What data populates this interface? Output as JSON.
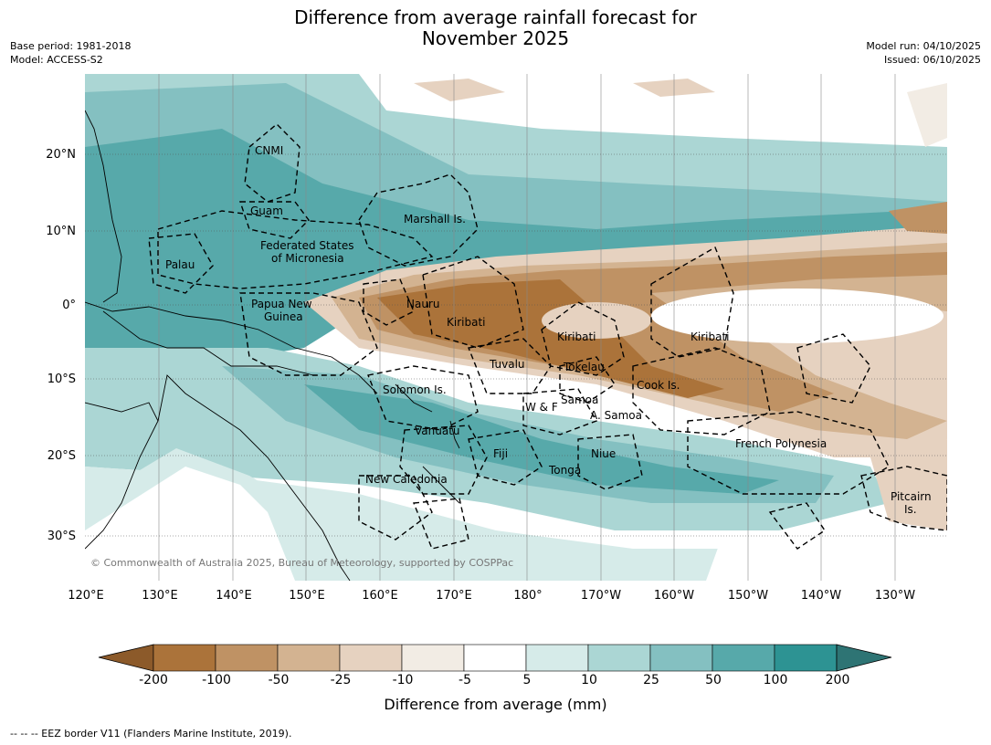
{
  "title_line1": "Difference from average rainfall forecast for",
  "title_line2": "November 2025",
  "meta": {
    "base_period": "Base period: 1981-2018",
    "model": "Model: ACCESS-S2",
    "model_run": "Model run: 04/10/2025",
    "issued": "Issued: 06/10/2025"
  },
  "lat_ticks": [
    "20°N",
    "10°N",
    "0°",
    "10°S",
    "20°S",
    "30°S"
  ],
  "lon_ticks": [
    "120°E",
    "130°E",
    "140°E",
    "150°E",
    "160°E",
    "170°E",
    "180°",
    "170°W",
    "160°W",
    "150°W",
    "140°W",
    "130°W"
  ],
  "places": {
    "cnmi": "CNMI",
    "guam": "Guam",
    "marshall": "Marshall Is.",
    "fsm1": "Federated States",
    "fsm2": "of Micronesia",
    "palau": "Palau",
    "png1": "Papua New",
    "png2": "Guinea",
    "nauru": "Nauru",
    "kiribati1": "Kiribati",
    "kiribati2": "Kiribati",
    "kiribati3": "Kiribati",
    "tuvalu": "Tuvalu",
    "tokelau": "Tokelau",
    "cook": "Cook Is.",
    "solomon": "Solomon Is.",
    "wf": "W & F",
    "samoa": "Samoa",
    "asamoa": "A. Samoa",
    "vanuatu": "Vanuatu",
    "fiji": "Fiji",
    "niue": "Niue",
    "tonga": "Tonga",
    "frpoly": "French Polynesia",
    "pitcairn1": "Pitcairn",
    "pitcairn2": "Is.",
    "newcal": "New Caledonia"
  },
  "copyright": "© Commonwealth of Australia 2025, Bureau of Meteorology, supported by COSPPac",
  "colorbar": {
    "ticks": [
      "-200",
      "-100",
      "-50",
      "-25",
      "-10",
      "-5",
      "5",
      "10",
      "25",
      "50",
      "100",
      "200"
    ],
    "colors": {
      "below_min": "#8c5a2a",
      "bins": [
        "#ab733a",
        "#bf9264",
        "#d3b391",
        "#e6d2c0",
        "#f2ece4",
        "#ffffff",
        "#d6ebe9",
        "#abd6d4",
        "#84c0c1",
        "#57a9aa",
        "#2d9393"
      ],
      "above_max": "#2e7474"
    },
    "label": "Difference from average (mm)"
  },
  "eez_note": "--  --  -- EEZ border V11 (Flanders Marine Institute, 2019)."
}
